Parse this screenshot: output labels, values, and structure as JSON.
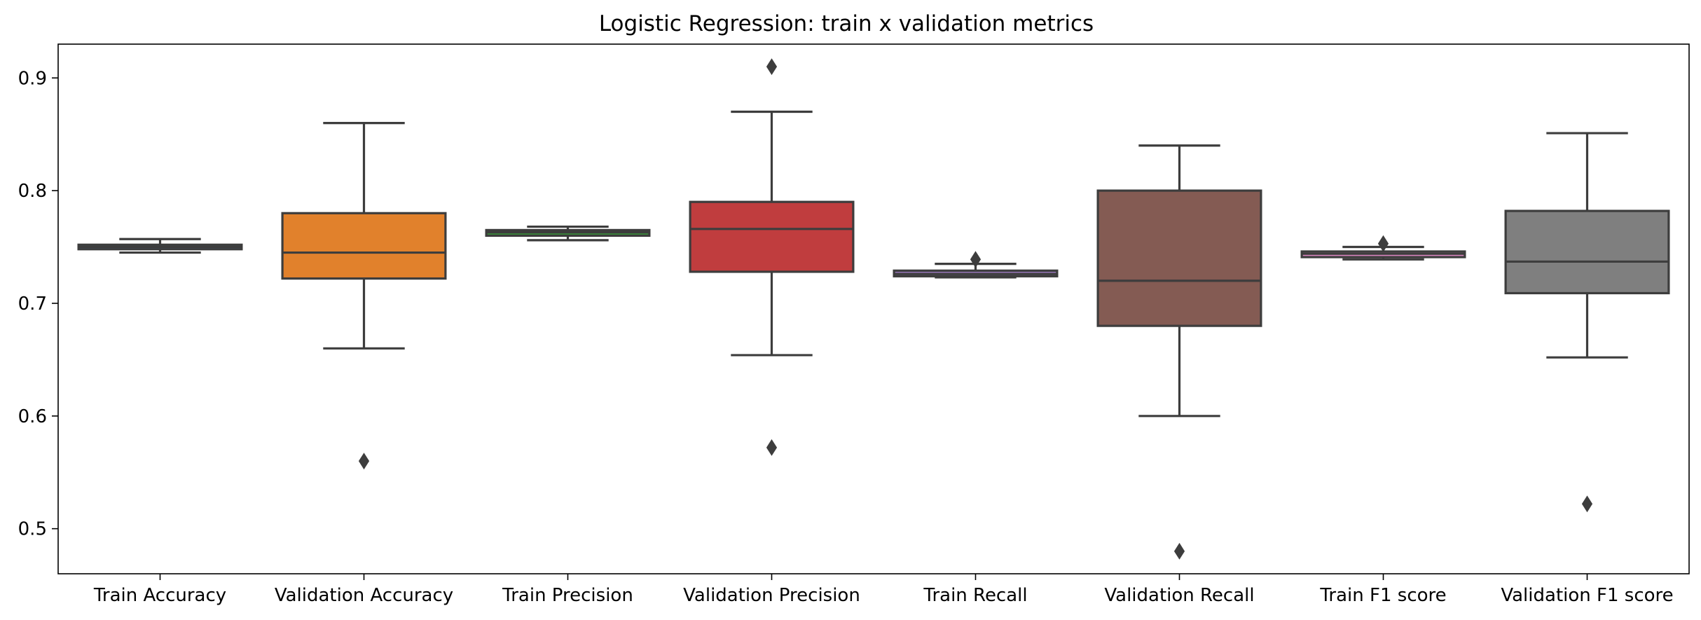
{
  "chart_data": {
    "type": "box",
    "title": "Logistic Regression: train x validation metrics",
    "xlabel": "",
    "ylabel": "",
    "ylim": [
      0.46,
      0.93
    ],
    "yticks": [
      0.5,
      0.6,
      0.7,
      0.8,
      0.9
    ],
    "ytick_labels": [
      "0.5",
      "0.6",
      "0.7",
      "0.8",
      "0.9"
    ],
    "grid": false,
    "legend": "none",
    "categories": [
      "Train Accuracy",
      "Validation Accuracy",
      "Train Precision",
      "Validation Precision",
      "Train Recall",
      "Validation Recall",
      "Train F1 score",
      "Validation F1 score"
    ],
    "boxes": [
      {
        "category": "Train Accuracy",
        "color": "#3274a1",
        "whisker_low": 0.745,
        "q1": 0.748,
        "median": 0.75,
        "q3": 0.752,
        "whisker_high": 0.757,
        "outliers": []
      },
      {
        "category": "Validation Accuracy",
        "color": "#e1812c",
        "whisker_low": 0.66,
        "q1": 0.722,
        "median": 0.745,
        "q3": 0.78,
        "whisker_high": 0.86,
        "outliers": [
          0.56
        ]
      },
      {
        "category": "Train Precision",
        "color": "#3a923a",
        "whisker_low": 0.756,
        "q1": 0.76,
        "median": 0.763,
        "q3": 0.765,
        "whisker_high": 0.768,
        "outliers": []
      },
      {
        "category": "Validation Precision",
        "color": "#c03d3e",
        "whisker_low": 0.654,
        "q1": 0.728,
        "median": 0.766,
        "q3": 0.79,
        "whisker_high": 0.87,
        "outliers": [
          0.91,
          0.572
        ]
      },
      {
        "category": "Train Recall",
        "color": "#9372b2",
        "whisker_low": 0.723,
        "q1": 0.724,
        "median": 0.726,
        "q3": 0.729,
        "whisker_high": 0.735,
        "outliers": [
          0.739
        ]
      },
      {
        "category": "Validation Recall",
        "color": "#845b53",
        "whisker_low": 0.6,
        "q1": 0.68,
        "median": 0.72,
        "q3": 0.8,
        "whisker_high": 0.84,
        "outliers": [
          0.48
        ]
      },
      {
        "category": "Train F1 score",
        "color": "#d684bd",
        "whisker_low": 0.739,
        "q1": 0.741,
        "median": 0.744,
        "q3": 0.746,
        "whisker_high": 0.75,
        "outliers": [
          0.753
        ]
      },
      {
        "category": "Validation F1 score",
        "color": "#7f7f7f",
        "whisker_low": 0.652,
        "q1": 0.709,
        "median": 0.737,
        "q3": 0.782,
        "whisker_high": 0.851,
        "outliers": [
          0.522
        ]
      }
    ],
    "line_color": "#3d3d3d",
    "outlier_marker": "diamond"
  }
}
